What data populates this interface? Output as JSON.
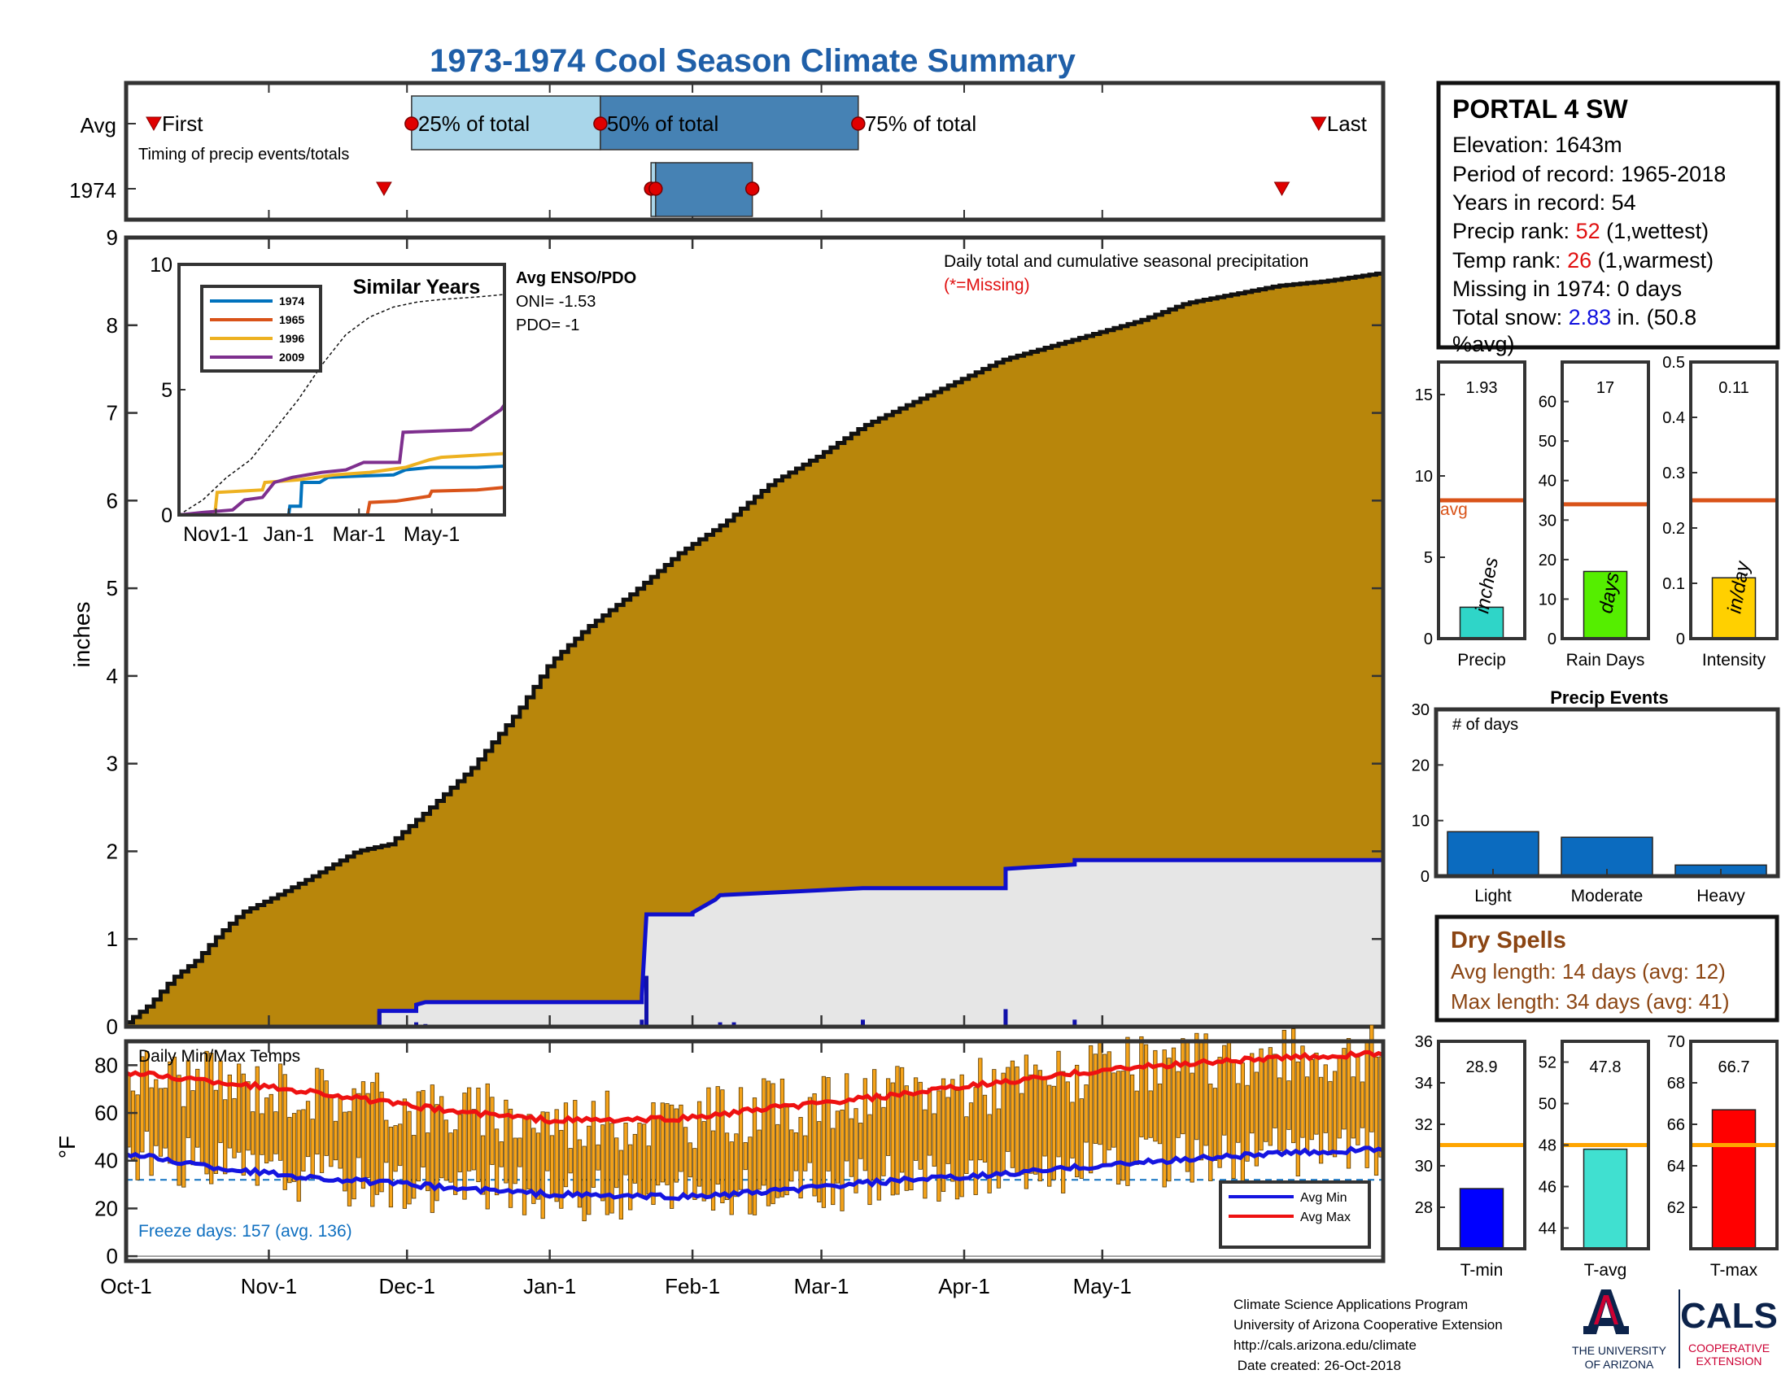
{
  "page": {
    "title": "1973-1974 Cool Season Climate Summary",
    "footer": {
      "lines": [
        "Climate Science Applications Program",
        "University of Arizona Cooperative Extension",
        "http://cals.arizona.edu/climate",
        " Date created: 26-Oct-2018"
      ],
      "logo_ua_text": [
        "THE UNIVERSITY",
        "OF ARIZONA"
      ],
      "logo_cals_text": [
        "CALS",
        "COOPERATIVE",
        "EXTENSION"
      ]
    }
  },
  "station": {
    "name": "PORTAL 4 SW",
    "elevation": "Elevation: 1643m",
    "period": "Period of record: 1965-2018",
    "years": "Years in record: 54",
    "precip_rank_label": "Precip rank: ",
    "precip_rank_value": "52",
    "precip_rank_note": " (1,wettest)",
    "temp_rank_label": "Temp rank: ",
    "temp_rank_value": "26",
    "temp_rank_note": " (1,warmest)",
    "missing": "Missing in 1974: 0 days",
    "snow_label": "Total snow: ",
    "snow_value": "2.83",
    "snow_note_1": " in. (50.8",
    "snow_note_2": "%avg)"
  },
  "colors": {
    "title_blue": "#1f5fa8",
    "cumulative_fill": "#b8860b",
    "avg_fill": "#e6e6e6",
    "avg_line": "#1010cc",
    "daily_bar": "#1010aa",
    "temp_bar": "#f5a31a",
    "avg_min_line": "#1515e0",
    "avg_max_line": "#ee1111",
    "rank_red": "#e01010",
    "snow_blue": "#1010dd",
    "dry_spell_brown": "#8b4513",
    "avg_orange_line": "#d95319",
    "temp_avg_line": "#ffa500",
    "events_bar": "#0b6bbf",
    "precip_bar": "#2fd5c8",
    "raindays_bar": "#55ee00",
    "intensity_bar": "#ffd000",
    "tmin_bar": "#0000ff",
    "tavg_bar": "#40e0d0",
    "tmax_bar": "#ff0000",
    "similar_1974": "#0072bd",
    "similar_1965": "#d95319",
    "similar_1996": "#edb120",
    "similar_2009": "#7e2f8e"
  },
  "timing": {
    "row_labels": [
      "Avg",
      "1974"
    ],
    "note": "Timing of precip events/totals",
    "first_label": "First",
    "last_label": "Last",
    "pct_labels": [
      "25% of total",
      "50% of total",
      "75% of total"
    ],
    "avg_day": {
      "first": 6,
      "p25": 62,
      "p50": 103,
      "p75": 159,
      "last": 259
    },
    "y1974_day": {
      "first": 56,
      "p25": 114,
      "p50": 115,
      "p75": 136,
      "last": 251
    }
  },
  "chart_data": [
    {
      "id": "main",
      "type": "area",
      "title": "Daily total and cumulative seasonal precipitation",
      "subtitle": "(*=Missing)",
      "ylabel": "inches",
      "ylim": [
        0,
        9
      ],
      "yticks": [
        0,
        1,
        2,
        3,
        4,
        5,
        6,
        7,
        8,
        9
      ],
      "xlim_days": [
        0,
        273
      ],
      "x_ticks": [
        {
          "day": 0,
          "label": "Oct-1"
        },
        {
          "day": 31,
          "label": "Nov-1"
        },
        {
          "day": 61,
          "label": "Dec-1"
        },
        {
          "day": 92,
          "label": "Jan-1"
        },
        {
          "day": 123,
          "label": "Feb-1"
        },
        {
          "day": 151,
          "label": "Mar-1"
        },
        {
          "day": 182,
          "label": "Apr-1"
        },
        {
          "day": 212,
          "label": "May-1"
        }
      ],
      "series": [
        {
          "name": "cumulative average",
          "points": [
            [
              0,
              0.05
            ],
            [
              5,
              0.25
            ],
            [
              10,
              0.55
            ],
            [
              15,
              0.75
            ],
            [
              20,
              1.05
            ],
            [
              25,
              1.3
            ],
            [
              31,
              1.45
            ],
            [
              40,
              1.7
            ],
            [
              50,
              2.0
            ],
            [
              57,
              2.08
            ],
            [
              65,
              2.45
            ],
            [
              75,
              2.95
            ],
            [
              85,
              3.6
            ],
            [
              92,
              4.15
            ],
            [
              100,
              4.55
            ],
            [
              110,
              4.95
            ],
            [
              120,
              5.4
            ],
            [
              130,
              5.75
            ],
            [
              140,
              6.2
            ],
            [
              150,
              6.5
            ],
            [
              160,
              6.85
            ],
            [
              170,
              7.1
            ],
            [
              180,
              7.35
            ],
            [
              190,
              7.6
            ],
            [
              200,
              7.75
            ],
            [
              210,
              7.9
            ],
            [
              220,
              8.05
            ],
            [
              230,
              8.25
            ],
            [
              240,
              8.35
            ],
            [
              250,
              8.45
            ],
            [
              260,
              8.5
            ],
            [
              273,
              8.6
            ]
          ]
        },
        {
          "name": "cumulative 1974",
          "points": [
            [
              0,
              0
            ],
            [
              55,
              0
            ],
            [
              55,
              0.18
            ],
            [
              63,
              0.18
            ],
            [
              63,
              0.25
            ],
            [
              65,
              0.28
            ],
            [
              112,
              0.28
            ],
            [
              112,
              0.35
            ],
            [
              113,
              1.28
            ],
            [
              123,
              1.28
            ],
            [
              123,
              1.3
            ],
            [
              128,
              1.45
            ],
            [
              129,
              1.5
            ],
            [
              160,
              1.58
            ],
            [
              191,
              1.58
            ],
            [
              191,
              1.8
            ],
            [
              206,
              1.85
            ],
            [
              206,
              1.9
            ],
            [
              273,
              1.9
            ]
          ]
        },
        {
          "name": "daily 1974",
          "points": [
            [
              55,
              0.18
            ],
            [
              63,
              0.05
            ],
            [
              65,
              0.03
            ],
            [
              112,
              0.08
            ],
            [
              113,
              0.58
            ],
            [
              129,
              0.05
            ],
            [
              132,
              0.05
            ],
            [
              160,
              0.08
            ],
            [
              191,
              0.2
            ],
            [
              206,
              0.08
            ]
          ]
        }
      ]
    },
    {
      "id": "temps",
      "type": "bar",
      "title": "Daily Min/Max Temps",
      "ylabel": "°F",
      "ylim": [
        -2,
        90
      ],
      "yticks": [
        0,
        20,
        40,
        60,
        80
      ],
      "freeze_line": 32,
      "freeze_text": "Freeze days: 157 (avg. 136)",
      "legend": [
        "Avg Min",
        "Avg Max"
      ],
      "avg_max": [
        [
          0,
          77
        ],
        [
          20,
          73
        ],
        [
          40,
          69
        ],
        [
          61,
          63
        ],
        [
          75,
          60
        ],
        [
          92,
          57
        ],
        [
          110,
          57
        ],
        [
          123,
          58
        ],
        [
          140,
          62
        ],
        [
          151,
          64
        ],
        [
          170,
          68
        ],
        [
          182,
          71
        ],
        [
          200,
          75
        ],
        [
          212,
          78
        ],
        [
          240,
          82
        ],
        [
          273,
          85
        ]
      ],
      "avg_min": [
        [
          0,
          43
        ],
        [
          20,
          37
        ],
        [
          40,
          33
        ],
        [
          61,
          30
        ],
        [
          75,
          28
        ],
        [
          92,
          26
        ],
        [
          110,
          25
        ],
        [
          123,
          25
        ],
        [
          140,
          27
        ],
        [
          151,
          29
        ],
        [
          170,
          32
        ],
        [
          182,
          33
        ],
        [
          200,
          36
        ],
        [
          212,
          38
        ],
        [
          240,
          42
        ],
        [
          273,
          45
        ]
      ]
    },
    {
      "id": "precip",
      "type": "bar",
      "title": "Precip",
      "value": 1.93,
      "label": "1.93",
      "avg": 8.5,
      "avg_label": "avg",
      "ylim": [
        0,
        17
      ],
      "yticks": [
        0,
        5,
        10,
        15
      ],
      "unit_label": "inches"
    },
    {
      "id": "raindays",
      "type": "bar",
      "title": "Rain Days",
      "value": 17,
      "label": "17",
      "avg": 34,
      "ylim": [
        0,
        70
      ],
      "yticks": [
        0,
        10,
        20,
        30,
        40,
        50,
        60
      ],
      "unit_label": "days"
    },
    {
      "id": "intensity",
      "type": "bar",
      "title": "Intensity",
      "value": 0.11,
      "label": "0.11",
      "avg": 0.25,
      "ylim": [
        0,
        0.5
      ],
      "yticks": [
        "0",
        "0.1",
        "0.2",
        "0.3",
        "0.4",
        "0.5"
      ],
      "unit_label": "in/day"
    },
    {
      "id": "events",
      "type": "bar",
      "title": "Precip Events",
      "inner_label": "# of days",
      "categories": [
        "Light",
        "Moderate",
        "Heavy"
      ],
      "values": [
        8,
        7,
        2
      ],
      "ylim": [
        0,
        30
      ],
      "yticks": [
        0,
        10,
        20,
        30
      ]
    },
    {
      "id": "tmin",
      "type": "bar",
      "title": "T-min",
      "value": 28.9,
      "label": "28.9",
      "avg": 31,
      "ylim": [
        26,
        36
      ],
      "yticks": [
        28,
        30,
        32,
        34,
        36
      ]
    },
    {
      "id": "tavg",
      "type": "bar",
      "title": "T-avg",
      "value": 47.8,
      "label": "47.8",
      "avg": 48,
      "ylim": [
        43,
        53
      ],
      "yticks": [
        44,
        46,
        48,
        50,
        52
      ]
    },
    {
      "id": "tmax",
      "type": "bar",
      "title": "T-max",
      "value": 66.7,
      "label": "66.7",
      "avg": 65,
      "ylim": [
        60,
        70
      ],
      "yticks": [
        62,
        64,
        66,
        68,
        70
      ]
    },
    {
      "id": "similar",
      "type": "line",
      "title": "Similar Years",
      "ylim": [
        0,
        10
      ],
      "yticks": [
        0,
        5,
        10
      ],
      "x_ticks": [
        {
          "day": 31,
          "label": "Nov1-1"
        },
        {
          "day": 92,
          "label": "Jan-1"
        },
        {
          "day": 151,
          "label": "Mar-1"
        },
        {
          "day": 212,
          "label": "May-1"
        }
      ],
      "enso_title": "Avg ENSO/PDO",
      "oni": "ONI= -1.53",
      "pdo": "PDO= -1",
      "series": [
        {
          "name": "1974",
          "points": [
            [
              0,
              0
            ],
            [
              92,
              0
            ],
            [
              93,
              0.35
            ],
            [
              102,
              0.35
            ],
            [
              103,
              1.3
            ],
            [
              118,
              1.3
            ],
            [
              125,
              1.5
            ],
            [
              150,
              1.55
            ],
            [
              180,
              1.6
            ],
            [
              190,
              1.8
            ],
            [
              211,
              1.9
            ],
            [
              250,
              1.9
            ],
            [
              273,
              1.95
            ]
          ]
        },
        {
          "name": "1965",
          "points": [
            [
              0,
              0
            ],
            [
              158,
              0
            ],
            [
              160,
              0.5
            ],
            [
              182,
              0.55
            ],
            [
              210,
              0.75
            ],
            [
              212,
              0.95
            ],
            [
              250,
              1.0
            ],
            [
              273,
              1.1
            ]
          ]
        },
        {
          "name": "1996",
          "points": [
            [
              0,
              0
            ],
            [
              30,
              0
            ],
            [
              32,
              0.9
            ],
            [
              70,
              1.0
            ],
            [
              72,
              1.3
            ],
            [
              100,
              1.4
            ],
            [
              130,
              1.6
            ],
            [
              160,
              1.7
            ],
            [
              190,
              1.9
            ],
            [
              210,
              2.2
            ],
            [
              220,
              2.3
            ],
            [
              273,
              2.45
            ]
          ]
        },
        {
          "name": "2009",
          "points": [
            [
              0,
              0
            ],
            [
              20,
              0.1
            ],
            [
              45,
              0.2
            ],
            [
              55,
              0.6
            ],
            [
              70,
              0.7
            ],
            [
              80,
              1.3
            ],
            [
              95,
              1.5
            ],
            [
              120,
              1.7
            ],
            [
              140,
              1.8
            ],
            [
              155,
              2.1
            ],
            [
              185,
              2.1
            ],
            [
              188,
              3.3
            ],
            [
              245,
              3.4
            ],
            [
              270,
              4.2
            ],
            [
              273,
              4.4
            ]
          ]
        }
      ],
      "avg_points": [
        [
          0,
          0
        ],
        [
          20,
          0.6
        ],
        [
          40,
          1.5
        ],
        [
          60,
          2.2
        ],
        [
          80,
          3.4
        ],
        [
          100,
          4.6
        ],
        [
          120,
          6.0
        ],
        [
          140,
          7.2
        ],
        [
          160,
          7.9
        ],
        [
          180,
          8.3
        ],
        [
          200,
          8.5
        ],
        [
          220,
          8.6
        ],
        [
          250,
          8.7
        ],
        [
          273,
          8.8
        ]
      ]
    },
    {
      "id": "dryspells",
      "type": "table",
      "title": "Dry Spells",
      "avg_length": "Avg length: 14 days (avg: 12)",
      "max_length": "Max length: 34 days (avg: 41)"
    }
  ]
}
